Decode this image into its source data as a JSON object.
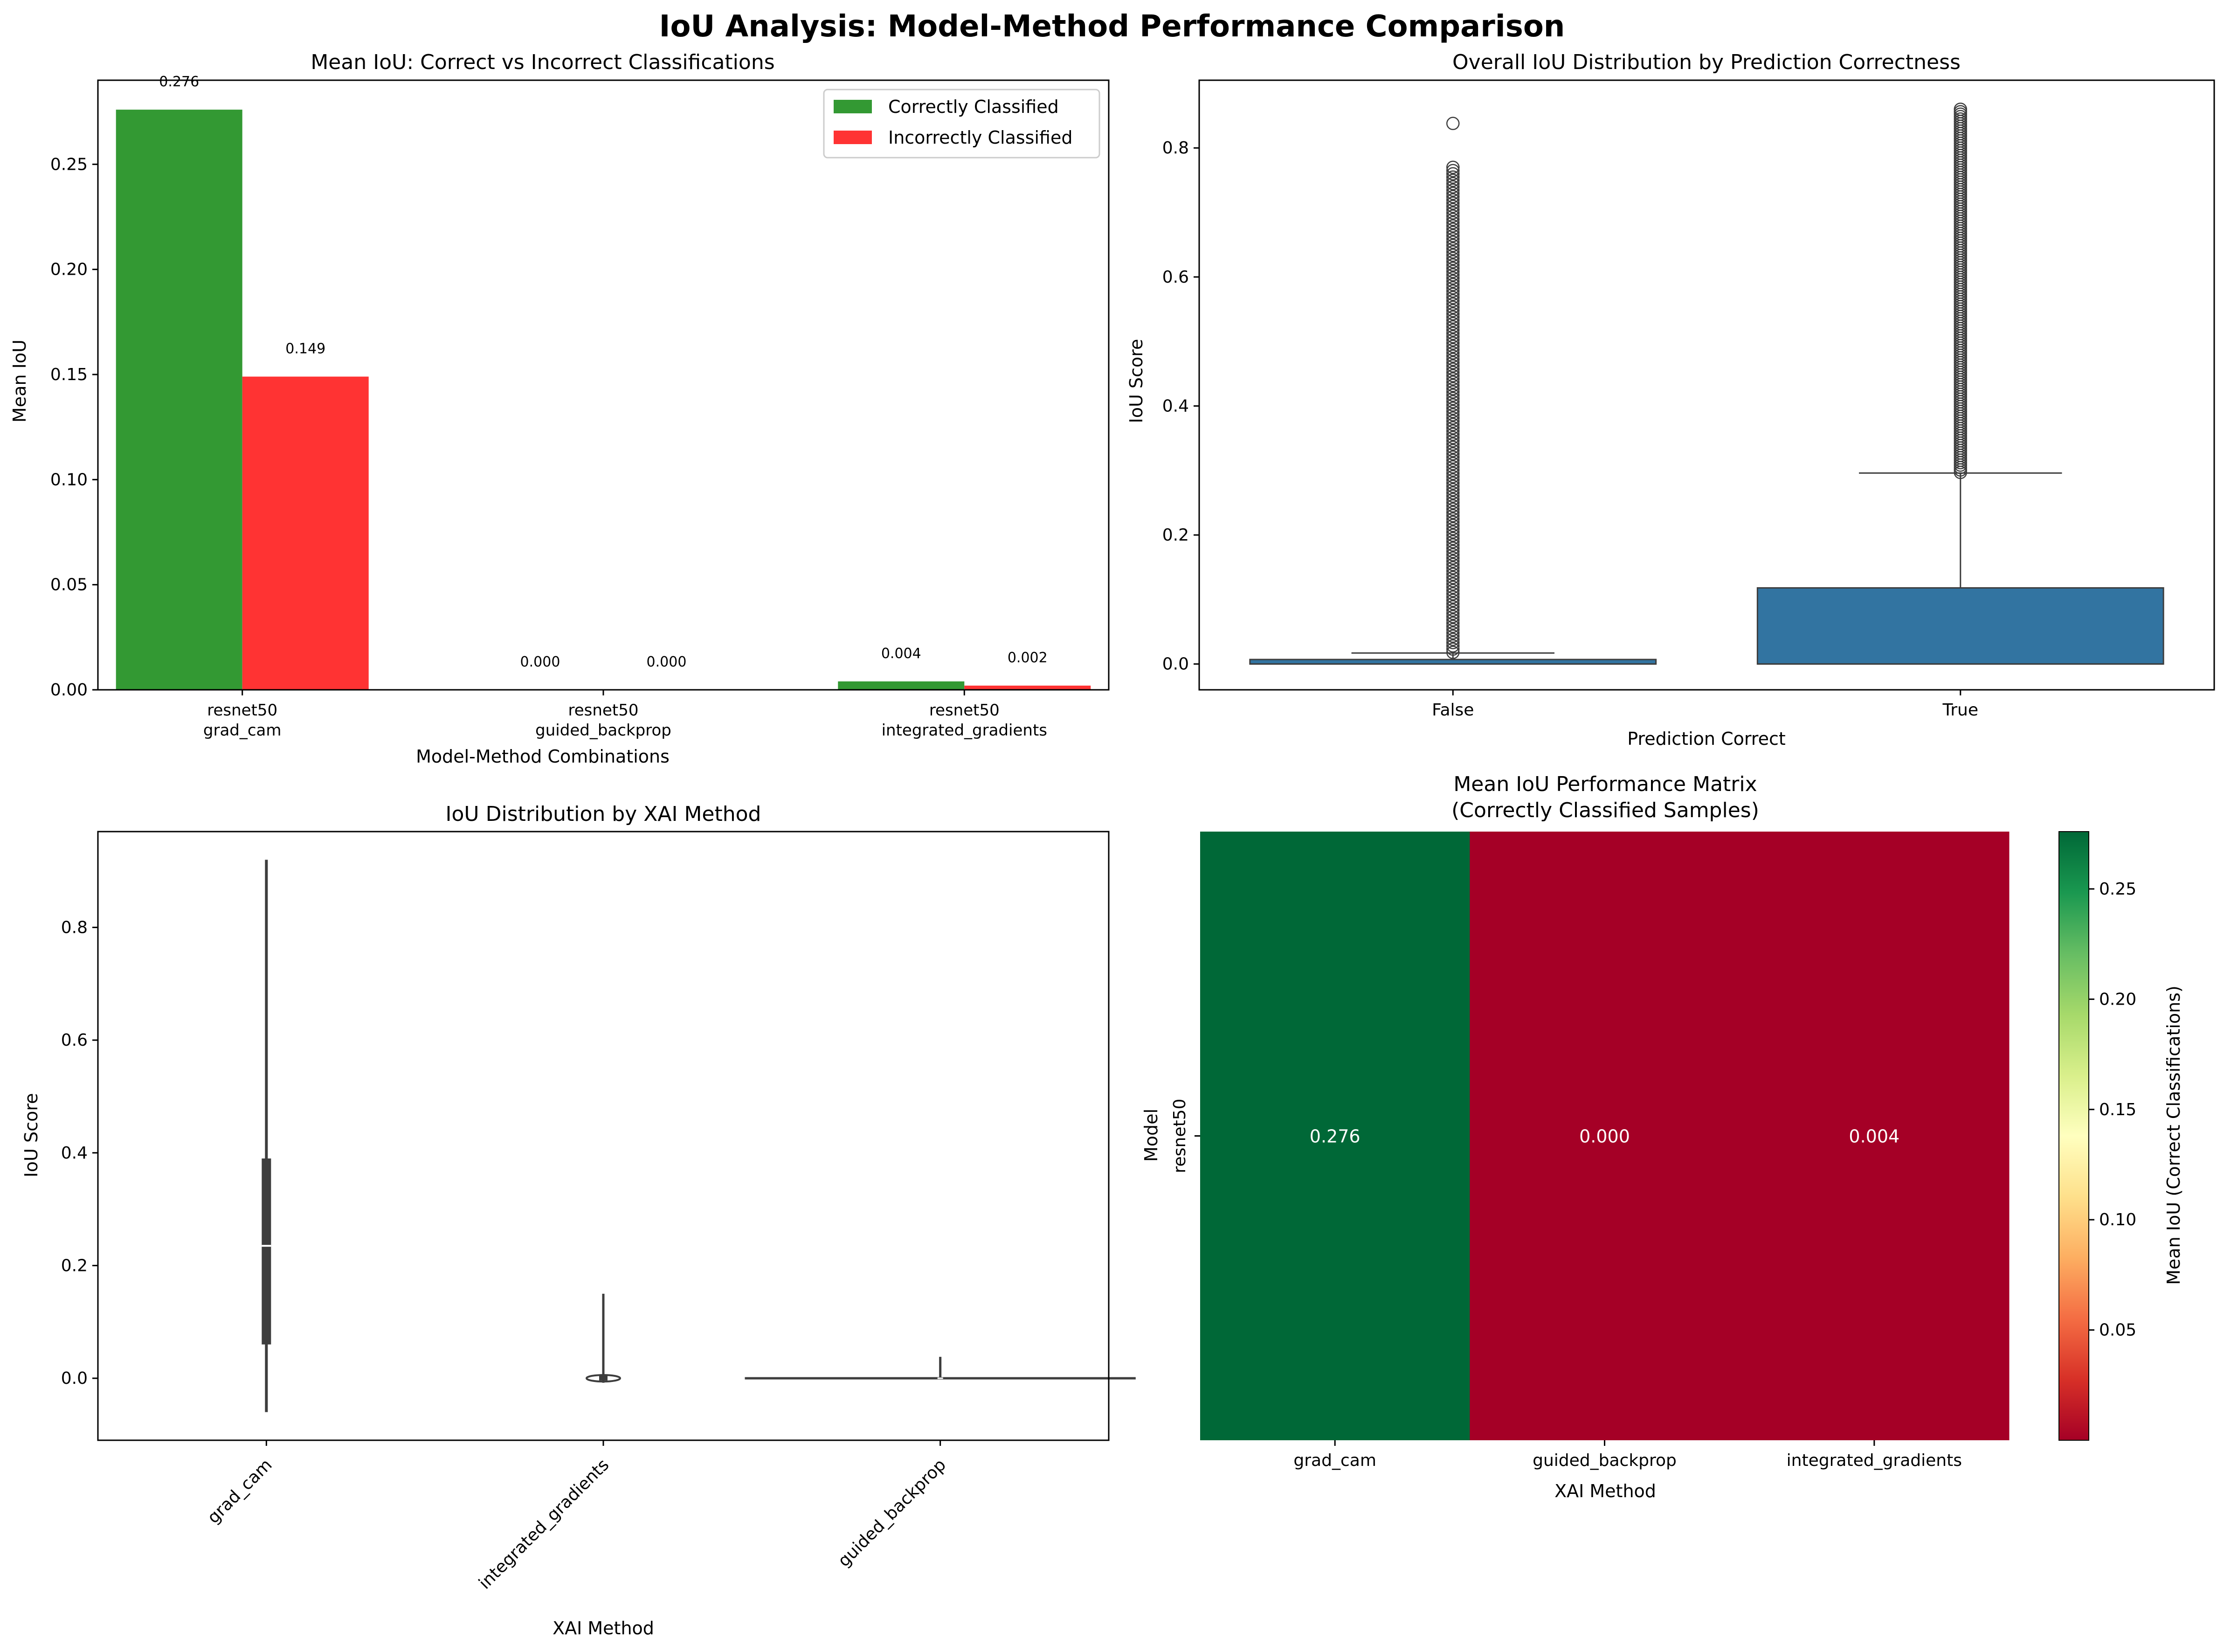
{
  "figure": {
    "title": "IoU Analysis: Model-Method Performance Comparison"
  },
  "chart_data": [
    {
      "type": "bar",
      "title": "Mean IoU: Correct vs Incorrect Classifications",
      "xlabel": "Model-Method Combinations",
      "ylabel": "Mean IoU",
      "categories": [
        [
          "resnet50",
          "grad_cam"
        ],
        [
          "resnet50",
          "guided_backprop"
        ],
        [
          "resnet50",
          "integrated_gradients"
        ]
      ],
      "series": [
        {
          "name": "Correctly Classified",
          "color": "#339933",
          "values": [
            0.276,
            0.0,
            0.004
          ],
          "labels": [
            "0.276",
            "0.000",
            "0.004"
          ]
        },
        {
          "name": "Incorrectly Classified",
          "color": "#ff3333",
          "values": [
            0.149,
            0.0,
            0.002
          ],
          "labels": [
            "0.149",
            "0.000",
            "0.002"
          ]
        }
      ],
      "ylim": [
        0,
        0.29
      ],
      "yticks": [
        0,
        0.05,
        0.1,
        0.15,
        0.2,
        0.25
      ],
      "ytick_labels": [
        "0.00",
        "0.05",
        "0.10",
        "0.15",
        "0.20",
        "0.25"
      ],
      "legend": "top-right",
      "grid": false
    },
    {
      "type": "box",
      "title": "Overall IoU Distribution by Prediction Correctness",
      "xlabel": "Prediction Correct",
      "ylabel": "IoU Score",
      "categories": [
        "False",
        "True"
      ],
      "color": "#3274a1",
      "boxes": [
        {
          "q1": 0.0,
          "median": 0.0,
          "q3": 0.007,
          "whisker_low": 0.0,
          "whisker_high": 0.017,
          "outlier_range": [
            0.018,
            0.77
          ],
          "extra_outliers": [
            0.838
          ]
        },
        {
          "q1": 0.0,
          "median": 0.0,
          "q3": 0.118,
          "whisker_low": 0.0,
          "whisker_high": 0.296,
          "outlier_range": [
            0.297,
            0.86
          ],
          "extra_outliers": []
        }
      ],
      "ylim": [
        -0.04,
        0.905
      ],
      "yticks": [
        0.0,
        0.2,
        0.4,
        0.6,
        0.8
      ],
      "ytick_labels": [
        "0.0",
        "0.2",
        "0.4",
        "0.6",
        "0.8"
      ],
      "grid": false
    },
    {
      "type": "violin",
      "title": "IoU Distribution by XAI Method",
      "xlabel": "XAI Method",
      "ylabel": "IoU Score",
      "categories": [
        "grad_cam",
        "integrated_gradients",
        "guided_backprop"
      ],
      "violins": [
        {
          "min": -0.06,
          "max": 0.92,
          "q1": 0.06,
          "median": 0.235,
          "q3": 0.39
        },
        {
          "min": -0.008,
          "max": 0.15,
          "q1": -0.004,
          "median": 0.0,
          "q3": 0.006
        },
        {
          "min": 0.0,
          "max": 0.038,
          "q1": 0.0,
          "median": 0.0,
          "q3": 0.0
        }
      ],
      "ylim": [
        -0.11,
        0.97
      ],
      "yticks": [
        0.0,
        0.2,
        0.4,
        0.6,
        0.8
      ],
      "ytick_labels": [
        "0.0",
        "0.2",
        "0.4",
        "0.6",
        "0.8"
      ],
      "grid": false
    },
    {
      "type": "heatmap",
      "title": "Mean IoU Performance Matrix",
      "subtitle": "(Correctly Classified Samples)",
      "xlabel": "XAI Method",
      "ylabel": "Model",
      "x": [
        "grad_cam",
        "guided_backprop",
        "integrated_gradients"
      ],
      "y": [
        "resnet50"
      ],
      "values": [
        [
          0.276,
          0.0,
          0.004
        ]
      ],
      "cell_labels": [
        [
          "0.276",
          "0.000",
          "0.004"
        ]
      ],
      "colors": [
        [
          "#006837",
          "#a50026",
          "#a50026"
        ]
      ],
      "colormap": "RdYlGn",
      "colorbar_label": "Mean IoU (Correct Classifications)",
      "colorbar_range": [
        0.0,
        0.276
      ],
      "colorbar_ticks": [
        0.05,
        0.1,
        0.15,
        0.2,
        0.25
      ],
      "colorbar_tick_labels": [
        "0.05",
        "0.10",
        "0.15",
        "0.20",
        "0.25"
      ]
    }
  ]
}
